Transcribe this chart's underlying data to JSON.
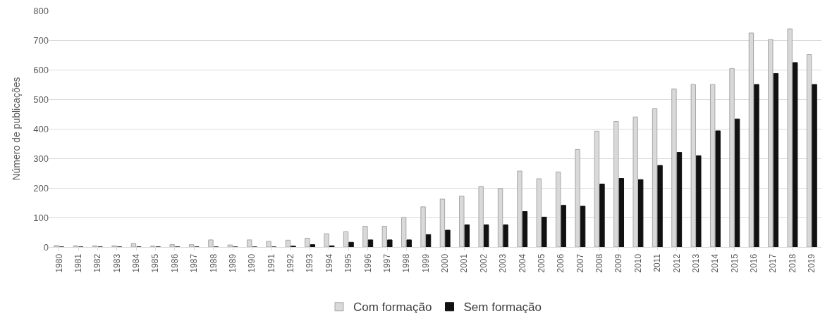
{
  "chart_data": {
    "type": "bar",
    "ylabel": "Número de publicações",
    "categories": [
      "1980",
      "1981",
      "1982",
      "1983",
      "1984",
      "1985",
      "1986",
      "1987",
      "1988",
      "1989",
      "1990",
      "1991",
      "1992",
      "1993",
      "1994",
      "1995",
      "1996",
      "1997",
      "1998",
      "1999",
      "2000",
      "2001",
      "2002",
      "2003",
      "2004",
      "2005",
      "2006",
      "2007",
      "2008",
      "2009",
      "2010",
      "2011",
      "2012",
      "2013",
      "2014",
      "2015",
      "2016",
      "2017",
      "2018",
      "2019"
    ],
    "series": [
      {
        "name": "Com formação",
        "color": "#d9d9d9",
        "values": [
          5,
          4,
          4,
          4,
          12,
          3,
          8,
          8,
          24,
          7,
          24,
          19,
          23,
          30,
          45,
          52,
          70,
          70,
          100,
          136,
          162,
          172,
          205,
          198,
          257,
          231,
          254,
          330,
          392,
          425,
          440,
          468,
          535,
          550,
          550,
          604,
          724,
          702,
          738,
          651
        ]
      },
      {
        "name": "Sem formação",
        "color": "#111111",
        "values": [
          0,
          0,
          0,
          0,
          0,
          0,
          0,
          0,
          0,
          0,
          0,
          0,
          3,
          8,
          4,
          16,
          24,
          24,
          24,
          42,
          57,
          75,
          75,
          75,
          120,
          101,
          141,
          138,
          213,
          232,
          228,
          276,
          320,
          309,
          393,
          433,
          550,
          587,
          624,
          550
        ]
      }
    ],
    "ylim": [
      0,
      800
    ],
    "yticks": [
      0,
      100,
      200,
      300,
      400,
      500,
      600,
      700,
      800
    ],
    "grid": "y",
    "legend": "bottom"
  }
}
